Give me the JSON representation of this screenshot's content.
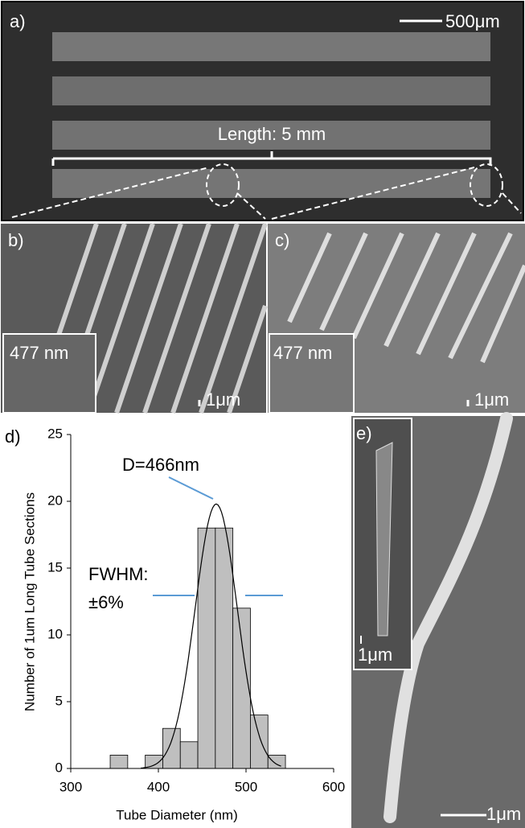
{
  "panels": {
    "a": {
      "label": "a)",
      "scale": "500μm",
      "annotation": "Length: 5 mm"
    },
    "b": {
      "label": "b)",
      "inset": "477 nm",
      "scale": "1μm"
    },
    "c": {
      "label": "c)",
      "inset": "477 nm",
      "scale": "1μm"
    },
    "e": {
      "label": "e)",
      "inset_scale": "1μm",
      "scale": "1μm"
    }
  },
  "chart_data": {
    "type": "histogram",
    "label": "d)",
    "bins": [
      345,
      365,
      385,
      405,
      425,
      445,
      465,
      485,
      505,
      525,
      545
    ],
    "counts": [
      1,
      0,
      1,
      3,
      2,
      18,
      18,
      12,
      4,
      1
    ],
    "color": "#bfbfbf",
    "xlabel": "Tube Diameter (nm)",
    "ylabel": "Number of 1um Long Tube Sections",
    "xlim": [
      300,
      600
    ],
    "xticks": [
      300,
      400,
      500,
      600
    ],
    "ylim": [
      0,
      25
    ],
    "yticks": [
      0,
      5,
      10,
      15,
      20,
      25
    ],
    "fit": {
      "mean": 466,
      "peak": 19.8,
      "sigma": 24
    },
    "annotations": [
      "D=466nm",
      "FWHM:",
      "±6%"
    ]
  }
}
